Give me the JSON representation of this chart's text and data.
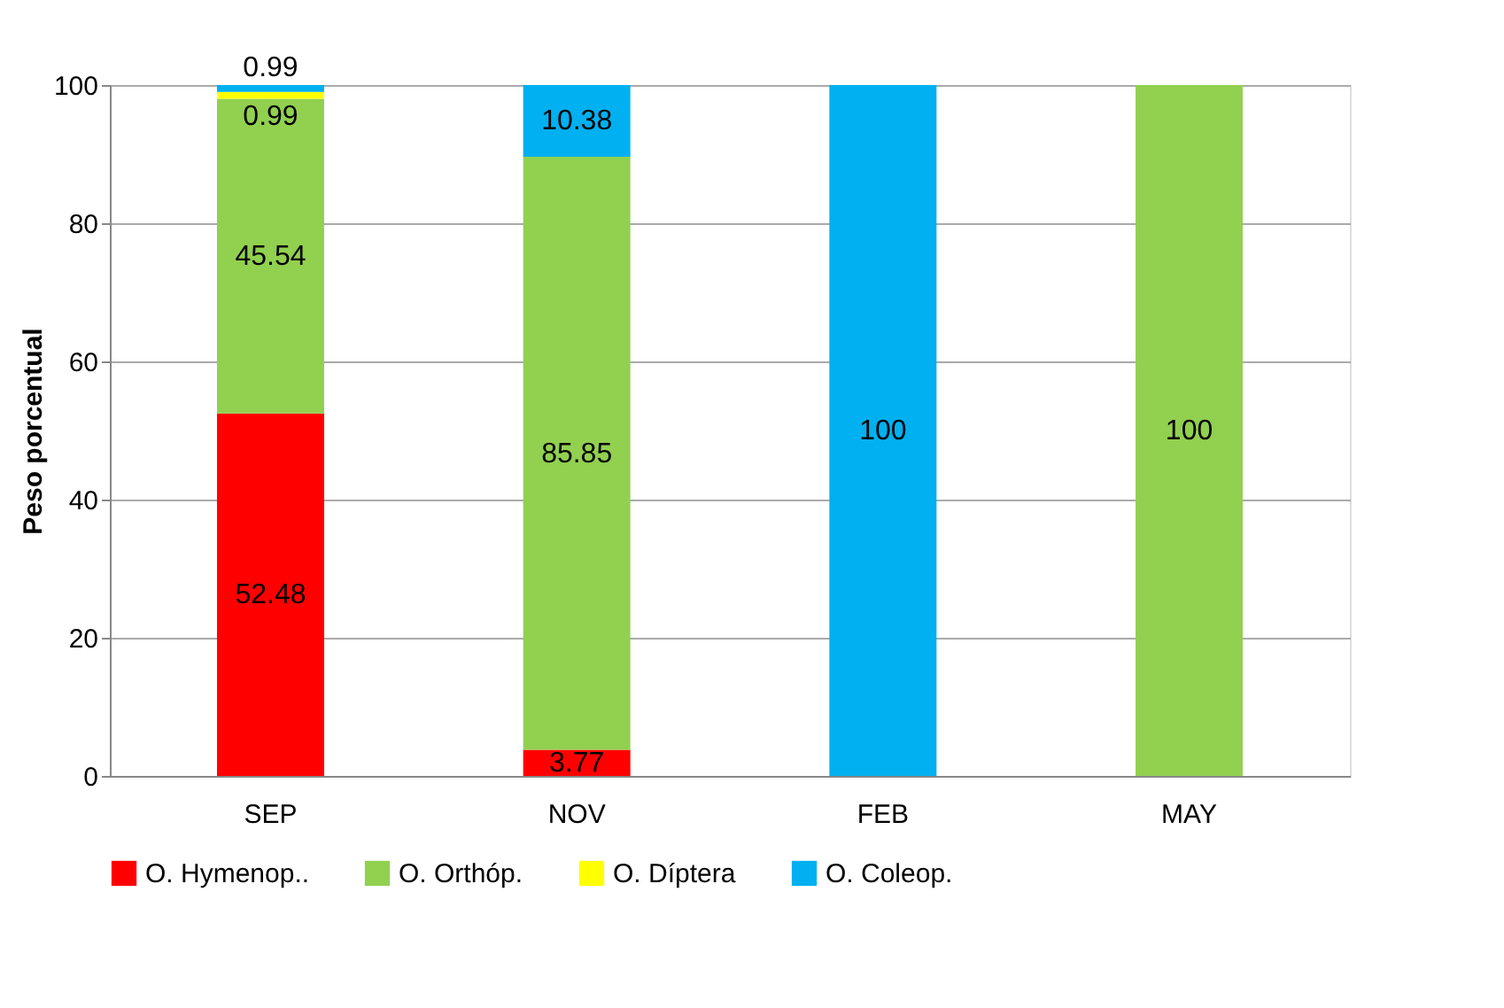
{
  "chart_data": {
    "type": "bar",
    "stacked": true,
    "ylabel": "Peso porcentual",
    "categories": [
      "SEP",
      "NOV",
      "FEB",
      "MAY"
    ],
    "series": [
      {
        "name": "O. Hymenop..",
        "color": "#ff0000",
        "values": [
          52.48,
          3.77,
          null,
          null
        ]
      },
      {
        "name": "O. Orthóp.",
        "color": "#92d050",
        "values": [
          45.54,
          85.85,
          null,
          100
        ]
      },
      {
        "name": "O. Díptera",
        "color": "#ffff00",
        "values": [
          0.99,
          null,
          null,
          null
        ]
      },
      {
        "name": "O. Coleop.",
        "color": "#00b0f0",
        "values": [
          0.99,
          10.38,
          100,
          null
        ]
      }
    ],
    "ylim": [
      0,
      100
    ],
    "yticks": [
      0,
      20,
      40,
      60,
      80,
      100
    ],
    "grid": "y",
    "legend": "bottom",
    "data_labels": true
  }
}
